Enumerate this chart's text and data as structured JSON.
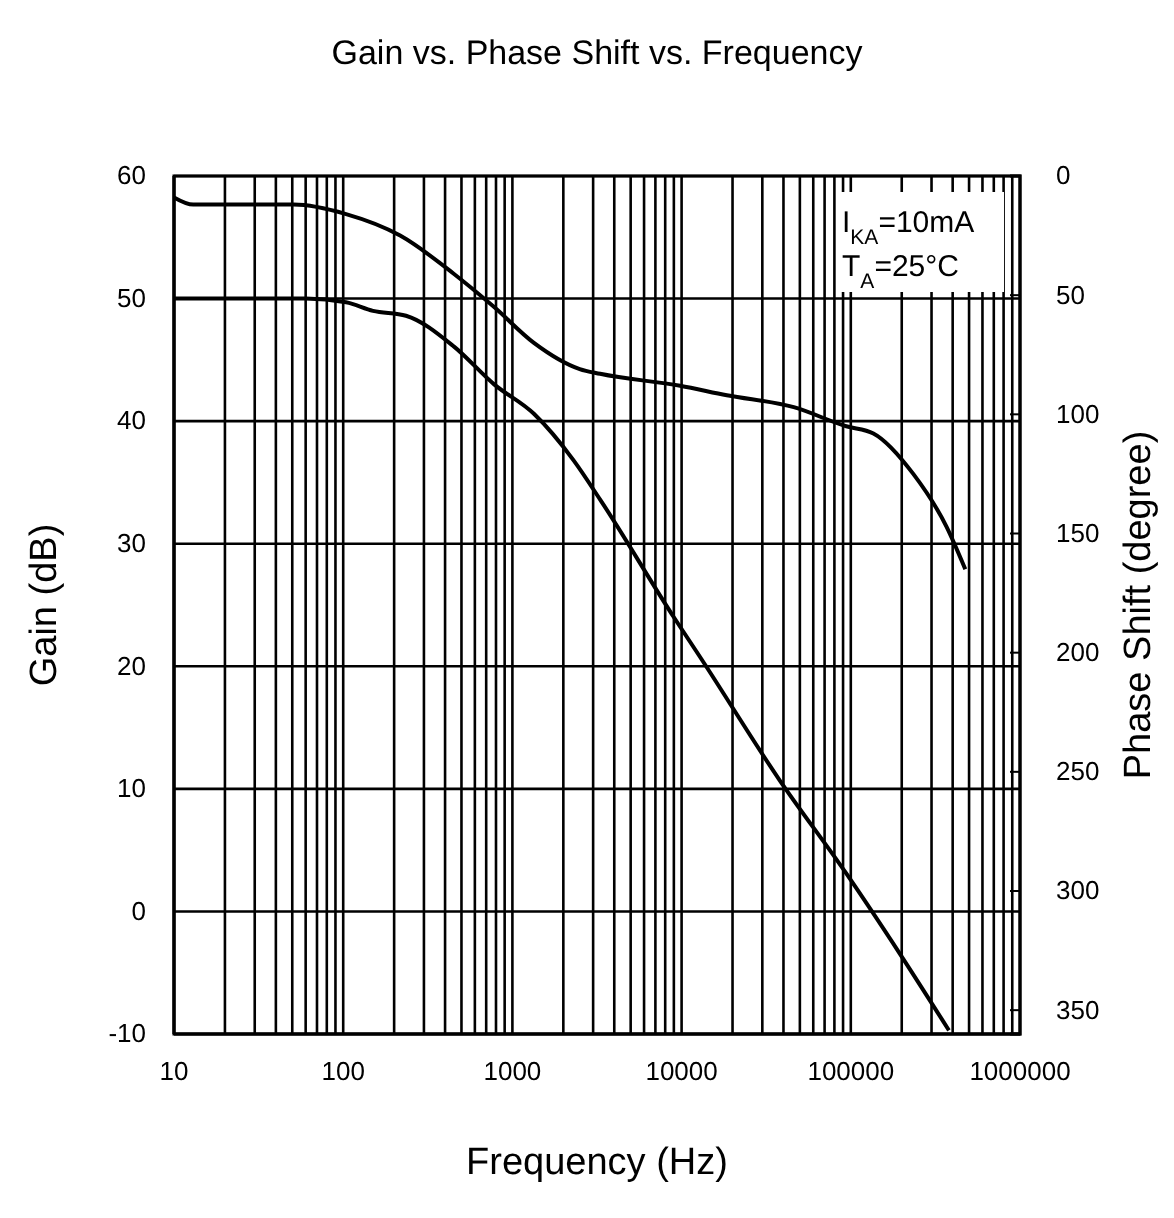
{
  "chart_data": {
    "type": "line",
    "title": "Gain vs. Phase Shift vs. Frequency",
    "xlabel": "Frequency (Hz)",
    "ylabel": "Gain (dB)",
    "y2label": "Phase Shift (degree)",
    "log": "x",
    "grid": true,
    "marker": "none",
    "line_style": "solid",
    "xlim": [
      10,
      1000000
    ],
    "xticks": [
      10,
      100,
      1000,
      10000,
      100000,
      1000000
    ],
    "ylim": [
      -10,
      60
    ],
    "yticks": [
      -10,
      0,
      10,
      20,
      30,
      40,
      50,
      60
    ],
    "y2lim": [
      360,
      0
    ],
    "y2ticks": [
      0,
      50,
      100,
      150,
      200,
      250,
      300,
      350
    ],
    "annotations": [
      "I$_{KA}$=10mA",
      "T$_{A}$=25°C"
    ],
    "series": [
      {
        "color": "#000000",
        "axis": "y",
        "x": [
          10,
          60,
          104,
          150,
          235,
          450,
          780,
          1340,
          2300,
          3300,
          9000,
          12800,
          38000,
          94000,
          196000,
          380000
        ],
        "values": [
          50,
          50,
          49.7,
          49,
          48.6,
          46.1,
          43,
          40.6,
          36.8,
          33.6,
          24,
          20.8,
          10.7,
          3.1,
          -3.5,
          -9.7
        ]
      },
      {
        "color": "#000000",
        "axis": "y2",
        "x": [
          10,
          13,
          51,
          104,
          217,
          450,
          780,
          1340,
          2500,
          3300,
          9800,
          18500,
          46000,
          94000,
          136000,
          234000,
          367000,
          475000
        ],
        "values": [
          9,
          12,
          12,
          16,
          25,
          41,
          55,
          70,
          81,
          83,
          88,
          92,
          97,
          105,
          108,
          125,
          147,
          165
        ]
      }
    ]
  }
}
